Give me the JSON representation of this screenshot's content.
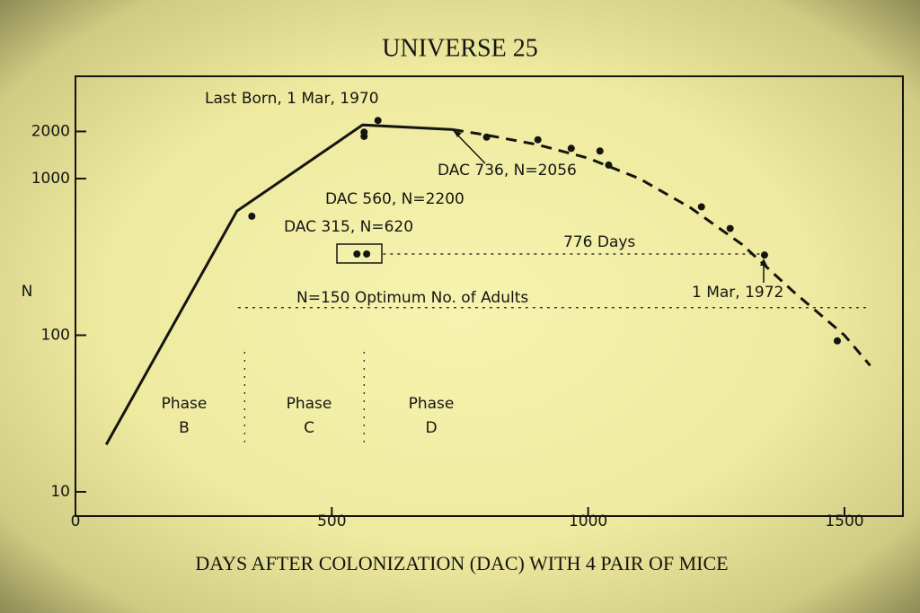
{
  "chart_data": {
    "type": "line",
    "title": "UNIVERSE 25",
    "x_label": "DAYS AFTER COLONIZATION (DAC) WITH 4 PAIR OF MICE",
    "y_label": "N",
    "xlim": [
      0,
      1614
    ],
    "xticks": [
      0,
      500,
      1000,
      1500
    ],
    "ylim": [
      7,
      4500
    ],
    "yticks": [
      10,
      100,
      1000,
      2000
    ],
    "ylog": true,
    "color": "#151510",
    "series": [
      {
        "style": "solid",
        "x": [
          60,
          315,
          560,
          736
        ],
        "values": [
          20,
          620,
          2200,
          2056
        ]
      },
      {
        "style": "dashed",
        "x": [
          736,
          800,
          900,
          1000,
          1100,
          1200,
          1300,
          1400,
          1500,
          1550
        ],
        "values": [
          2056,
          1900,
          1650,
          1350,
          1000,
          650,
          380,
          190,
          100,
          64
        ]
      },
      {
        "style": "points",
        "x": [
          344,
          563,
          563,
          590,
          802,
          902,
          967,
          1023,
          1040,
          1221,
          1277,
          1344,
          1486,
          549,
          568
        ],
        "values": [
          575,
          1980,
          1860,
          2350,
          1840,
          1770,
          1560,
          1500,
          1220,
          660,
          480,
          325,
          92,
          330,
          330
        ]
      }
    ],
    "hlines": [
      {
        "y": 150,
        "x": [
          317,
          1550
        ]
      },
      {
        "y": 330,
        "x": [
          600,
          1344
        ]
      }
    ],
    "phase_boundaries": [
      330,
      563
    ],
    "phases": [
      [
        "Phase",
        "B"
      ],
      [
        "Phase",
        "C"
      ],
      [
        "Phase",
        "D"
      ]
    ],
    "annotations": [
      "Last Born, 1 Mar, 1970",
      "DAC 736, N=2056",
      "DAC 560, N=2200",
      "DAC 315, N=620",
      "776 Days",
      "1 Mar, 1972",
      "N=150  Optimum No. of Adults"
    ]
  }
}
